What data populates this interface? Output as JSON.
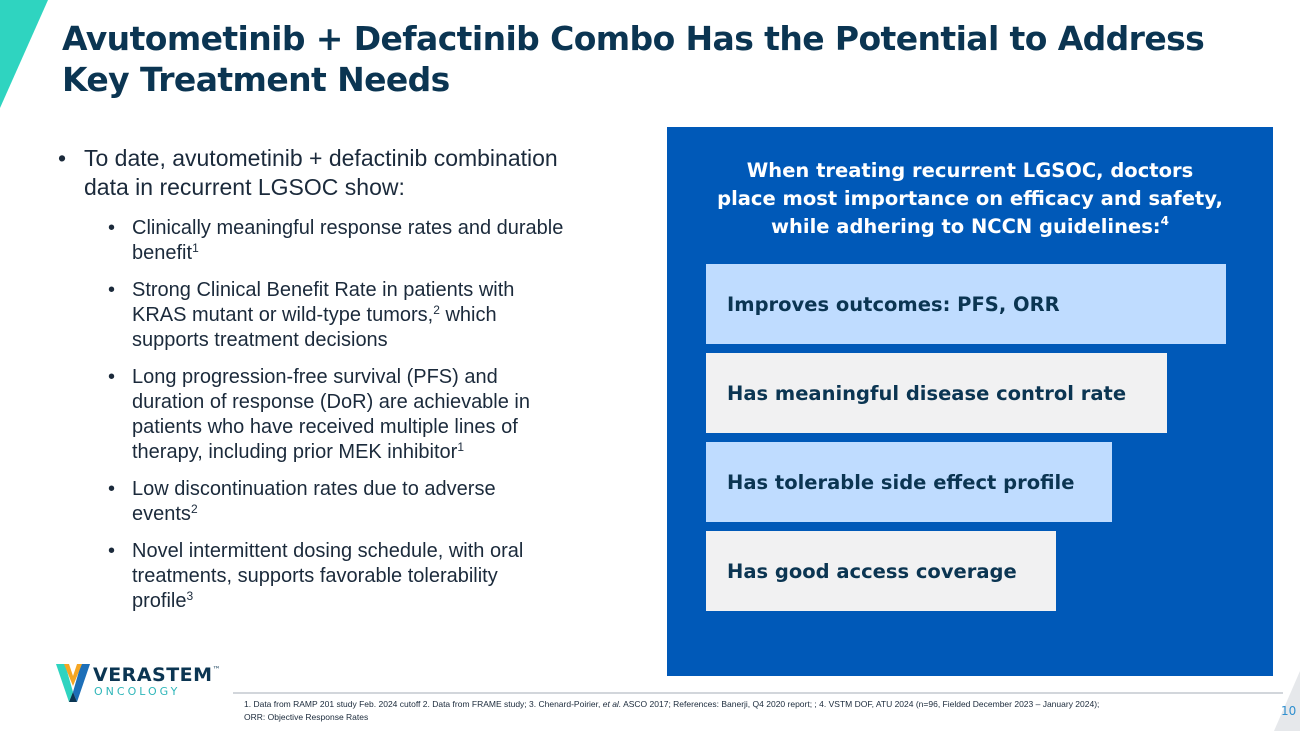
{
  "slide": {
    "title_lines": [
      "Avutometinib + Defactinib Combo Has the Potential to Address",
      "Key Treatment Needs"
    ],
    "page_number": "10"
  },
  "bullets": {
    "main_lines": [
      "To date, avutometinib + defactinib combination",
      "data in recurrent LGSOC show:"
    ],
    "sub": [
      {
        "lines": [
          "Clinically meaningful response rates and durable",
          "benefit"
        ],
        "ref": "1"
      },
      {
        "lines": [
          "Strong Clinical Benefit Rate in patients with",
          "KRAS mutant or wild-type tumors,"
        ],
        "ref_mid": "2",
        "after_ref": " which",
        "lines_after": [
          "supports treatment decisions"
        ]
      },
      {
        "lines": [
          "Long progression-free survival (PFS) and",
          "duration of response (DoR) are achievable in",
          "patients who have received multiple lines of",
          "therapy, including prior MEK inhibitor"
        ],
        "ref": "1"
      },
      {
        "lines": [
          "Low discontinuation rates due to adverse",
          "events"
        ],
        "ref": "2"
      },
      {
        "lines": [
          "Novel intermittent dosing schedule, with oral",
          "treatments, supports favorable tolerability",
          "profile"
        ],
        "ref": "3"
      }
    ]
  },
  "panel": {
    "heading_lines": [
      "When treating recurrent LGSOC, doctors",
      "place most importance on efficacy and safety,",
      "while adhering to NCCN guidelines:"
    ],
    "heading_ref": "4",
    "items": [
      {
        "label": "Improves outcomes: PFS, ORR"
      },
      {
        "label": "Has meaningful disease control rate"
      },
      {
        "label": "Has tolerable side effect profile"
      },
      {
        "label": "Has good access coverage"
      }
    ]
  },
  "logo": {
    "name": "VERASTEM",
    "tm": "™",
    "sub": "ONCOLOGY"
  },
  "footnotes": {
    "line1_a": "1. Data from RAMP 201 study Feb. 2024 cutoff 2. Data from FRAME study; 3. Chenard-Poirier, ",
    "line1_em": "et al.",
    "line1_b": " ASCO 2017; References: Banerji, Q4 2020 report; ; 4. VSTM DOF, ATU 2024 (n=96, Fielded December 2023 – January 2024);",
    "line2": "ORR: Objective Response Rates"
  },
  "colors": {
    "title": "#0b3552",
    "panel_bg": "#0059b8",
    "bar_light": "#bfdcff",
    "bar_grey": "#f1f1f2",
    "accent_teal": "#2fd4c0",
    "logo_sub": "#2fb6b9"
  }
}
